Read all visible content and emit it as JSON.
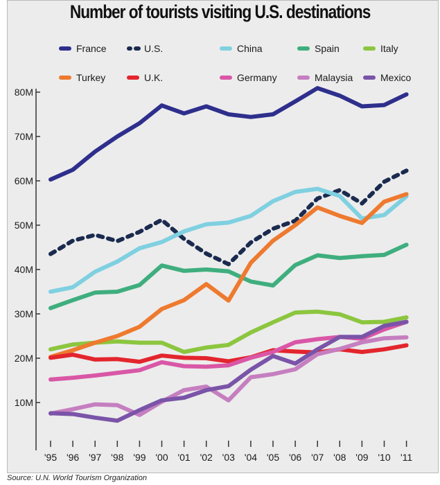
{
  "title": "Number of tourists visiting U.S. destinations",
  "source": "Source: U.N. World Tourism Organization",
  "chart_data": {
    "type": "line",
    "title": "Number of tourists visiting U.S. destinations",
    "xlabel": "",
    "ylabel": "",
    "x": [
      "'95",
      "'96",
      "'97",
      "'98",
      "'99",
      "'00",
      "'01",
      "'02",
      "'03",
      "'04",
      "'05",
      "'06",
      "'07",
      "'08",
      "'09",
      "'10",
      "'11"
    ],
    "yticks": [
      "10M",
      "20M",
      "30M",
      "40M",
      "50M",
      "60M",
      "70M",
      "80M"
    ],
    "ylim": [
      0,
      80
    ],
    "grid": false,
    "legend": "top",
    "series": [
      {
        "name": "France",
        "color": "#2e2f8c",
        "dash": false,
        "values": [
          60.3,
          62.5,
          66.6,
          70.0,
          73.0,
          77.0,
          75.2,
          76.8,
          75.0,
          74.4,
          75.0,
          77.9,
          80.9,
          79.2,
          76.8,
          77.1,
          79.5
        ]
      },
      {
        "name": "U.S.",
        "color": "#1b2a4f",
        "dash": true,
        "values": [
          43.5,
          46.5,
          47.8,
          46.4,
          48.5,
          51.2,
          46.9,
          43.6,
          41.2,
          46.1,
          49.2,
          51.0,
          56.0,
          57.9,
          54.9,
          59.8,
          62.3
        ]
      },
      {
        "name": "China",
        "color": "#7fd0e0",
        "dash": false,
        "values": [
          35.0,
          36.0,
          39.5,
          41.8,
          44.8,
          46.2,
          48.6,
          50.2,
          50.6,
          52.1,
          55.4,
          57.5,
          58.2,
          56.6,
          51.5,
          52.3,
          56.5
        ]
      },
      {
        "name": "Spain",
        "color": "#3fae7e",
        "dash": false,
        "values": [
          31.3,
          33.1,
          34.8,
          35.0,
          36.5,
          40.9,
          39.7,
          40.0,
          39.6,
          37.3,
          36.4,
          41.0,
          43.2,
          42.6,
          43.0,
          43.3,
          45.6
        ]
      },
      {
        "name": "Italy",
        "color": "#8cc63f",
        "dash": false,
        "values": [
          22.0,
          23.1,
          23.5,
          23.8,
          23.5,
          23.5,
          21.4,
          22.4,
          23.0,
          25.8,
          28.1,
          30.3,
          30.5,
          29.9,
          28.1,
          28.2,
          29.2
        ]
      },
      {
        "name": "Turkey",
        "color": "#ee7a2f",
        "dash": false,
        "values": [
          20.3,
          21.8,
          23.5,
          25.0,
          27.1,
          31.1,
          33.1,
          36.7,
          33.0,
          41.5,
          46.5,
          50.0,
          54.0,
          52.1,
          50.5,
          55.3,
          57.0
        ]
      },
      {
        "name": "U.K.",
        "color": "#e3252d",
        "dash": false,
        "values": [
          20.1,
          20.8,
          19.7,
          19.8,
          19.2,
          20.6,
          20.1,
          20.0,
          19.3,
          20.2,
          21.8,
          21.5,
          21.3,
          22.0,
          21.4,
          22.0,
          22.9
        ]
      },
      {
        "name": "Germany",
        "color": "#d957a6",
        "dash": false,
        "values": [
          15.2,
          15.6,
          16.1,
          16.7,
          17.3,
          19.1,
          18.2,
          18.1,
          18.4,
          20.1,
          21.4,
          23.6,
          24.3,
          24.8,
          24.4,
          26.5,
          28.2
        ]
      },
      {
        "name": "Malaysia",
        "color": "#c57fc0",
        "dash": false,
        "values": [
          7.5,
          8.5,
          9.6,
          9.4,
          7.2,
          10.2,
          12.8,
          13.6,
          10.5,
          15.7,
          16.4,
          17.5,
          20.9,
          22.1,
          23.6,
          24.5,
          24.7
        ]
      },
      {
        "name": "Mexico",
        "color": "#7a54a8",
        "dash": false,
        "values": [
          7.6,
          7.4,
          6.6,
          5.9,
          8.3,
          10.5,
          11.1,
          12.8,
          13.7,
          17.4,
          20.5,
          18.8,
          22.0,
          24.8,
          24.8,
          27.3,
          28.2
        ]
      }
    ],
    "legend_order": [
      "France",
      "U.S.",
      "China",
      "Spain",
      "Italy",
      "Turkey",
      "U.K.",
      "Germany",
      "Malaysia",
      "Mexico"
    ]
  }
}
